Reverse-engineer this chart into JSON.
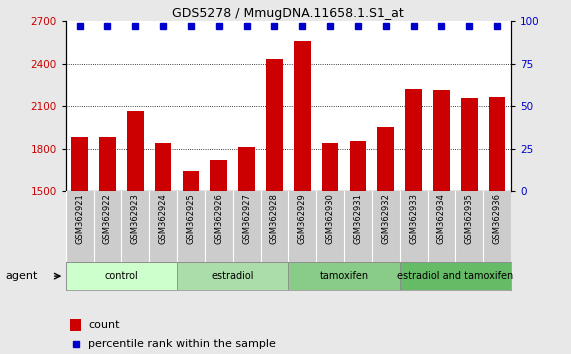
{
  "title": "GDS5278 / MmugDNA.11658.1.S1_at",
  "samples": [
    "GSM362921",
    "GSM362922",
    "GSM362923",
    "GSM362924",
    "GSM362925",
    "GSM362926",
    "GSM362927",
    "GSM362928",
    "GSM362929",
    "GSM362930",
    "GSM362931",
    "GSM362932",
    "GSM362933",
    "GSM362934",
    "GSM362935",
    "GSM362936"
  ],
  "counts": [
    1880,
    1885,
    2065,
    1840,
    1640,
    1720,
    1810,
    2430,
    2560,
    1840,
    1855,
    1950,
    2220,
    2215,
    2160,
    2165
  ],
  "percentiles": [
    97,
    97,
    97,
    97,
    97,
    97,
    97,
    97,
    97,
    97,
    97,
    97,
    97,
    97,
    97,
    97
  ],
  "ylim_left": [
    1500,
    2700
  ],
  "ylim_right": [
    0,
    100
  ],
  "yticks_left": [
    1500,
    1800,
    2100,
    2400,
    2700
  ],
  "yticks_right": [
    0,
    25,
    50,
    75,
    100
  ],
  "bar_color": "#cc0000",
  "dot_color": "#0000cc",
  "groups": [
    {
      "label": "control",
      "start": 0,
      "end": 4,
      "color": "#ccffcc"
    },
    {
      "label": "estradiol",
      "start": 4,
      "end": 8,
      "color": "#aaddaa"
    },
    {
      "label": "tamoxifen",
      "start": 8,
      "end": 12,
      "color": "#88cc88"
    },
    {
      "label": "estradiol and tamoxifen",
      "start": 12,
      "end": 16,
      "color": "#66bb66"
    }
  ],
  "agent_label": "agent",
  "legend_count_label": "count",
  "legend_percentile_label": "percentile rank within the sample",
  "background_color": "#e8e8e8",
  "plot_bg_color": "#ffffff",
  "grid_color": "#000000",
  "title_color": "#000000",
  "bar_width": 0.6,
  "tick_label_bg": "#cccccc"
}
